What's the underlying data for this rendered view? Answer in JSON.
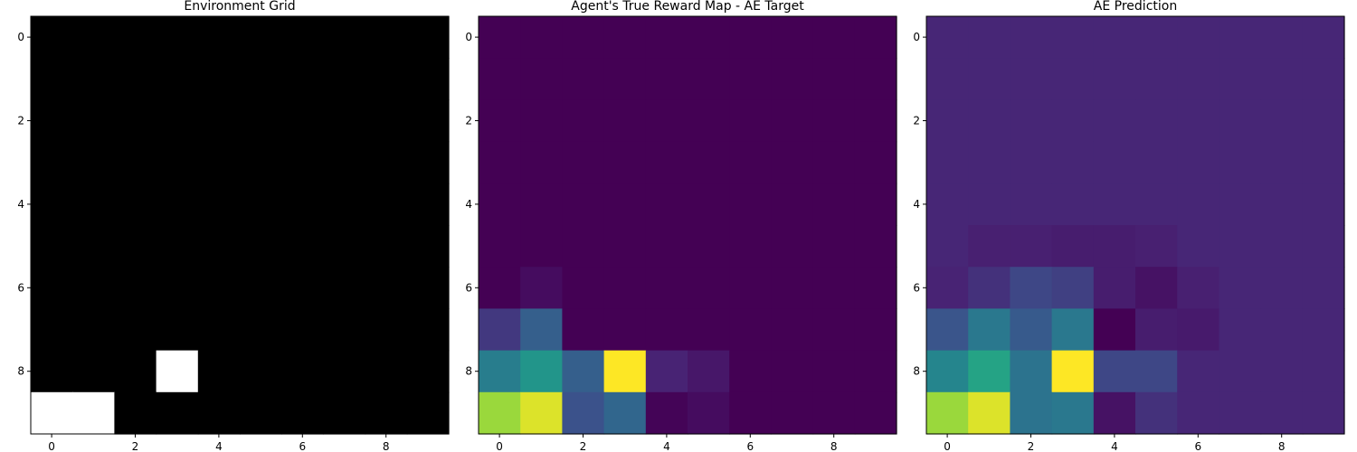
{
  "chart_data": [
    {
      "type": "heatmap",
      "title": "Environment Grid",
      "colormap": "gray",
      "xticks": [
        0,
        2,
        4,
        6,
        8
      ],
      "yticks": [
        0,
        2,
        4,
        6,
        8
      ],
      "xlim": [
        -0.5,
        9.5
      ],
      "ylim": [
        9.5,
        -0.5
      ],
      "grid": false,
      "values": [
        [
          0,
          0,
          0,
          0,
          0,
          0,
          0,
          0,
          0,
          0
        ],
        [
          0,
          0,
          0,
          0,
          0,
          0,
          0,
          0,
          0,
          0
        ],
        [
          0,
          0,
          0,
          0,
          0,
          0,
          0,
          0,
          0,
          0
        ],
        [
          0,
          0,
          0,
          0,
          0,
          0,
          0,
          0,
          0,
          0
        ],
        [
          0,
          0,
          0,
          0,
          0,
          0,
          0,
          0,
          0,
          0
        ],
        [
          0,
          0,
          0,
          0,
          0,
          0,
          0,
          0,
          0,
          0
        ],
        [
          0,
          0,
          0,
          0,
          0,
          0,
          0,
          0,
          0,
          0
        ],
        [
          0,
          0,
          0,
          0,
          0,
          0,
          0,
          0,
          0,
          0
        ],
        [
          0,
          0,
          0,
          1,
          0,
          0,
          0,
          0,
          0,
          0
        ],
        [
          1,
          1,
          0,
          0,
          0,
          0,
          0,
          0,
          0,
          0
        ]
      ]
    },
    {
      "type": "heatmap",
      "title": "Agent's True Reward Map - AE Target",
      "colormap": "viridis",
      "xticks": [
        0,
        2,
        4,
        6,
        8
      ],
      "yticks": [
        0,
        2,
        4,
        6,
        8
      ],
      "xlim": [
        -0.5,
        9.5
      ],
      "ylim": [
        9.5,
        -0.5
      ],
      "grid": false,
      "values": [
        [
          0,
          0,
          0,
          0,
          0,
          0,
          0,
          0,
          0,
          0
        ],
        [
          0,
          0,
          0,
          0,
          0,
          0,
          0,
          0,
          0,
          0
        ],
        [
          0,
          0,
          0,
          0,
          0,
          0,
          0,
          0,
          0,
          0
        ],
        [
          0,
          0,
          0,
          0,
          0,
          0,
          0,
          0,
          0,
          0
        ],
        [
          0,
          0,
          0,
          0,
          0,
          0,
          0,
          0,
          0,
          0
        ],
        [
          0,
          0,
          0,
          0,
          0,
          0,
          0,
          0,
          0,
          0
        ],
        [
          0,
          0.04,
          0,
          0,
          0,
          0,
          0,
          0,
          0,
          0
        ],
        [
          0.18,
          0.3,
          0,
          0,
          0,
          0,
          0,
          0,
          0,
          0
        ],
        [
          0.42,
          0.52,
          0.3,
          1.0,
          0.12,
          0.08,
          0,
          0,
          0,
          0
        ],
        [
          0.85,
          0.95,
          0.25,
          0.33,
          0.01,
          0.04,
          0,
          0,
          0,
          0
        ]
      ]
    },
    {
      "type": "heatmap",
      "title": "AE Prediction",
      "colormap": "viridis",
      "xticks": [
        0,
        2,
        4,
        6,
        8
      ],
      "yticks": [
        0,
        2,
        4,
        6,
        8
      ],
      "xlim": [
        -0.5,
        9.5
      ],
      "ylim": [
        9.5,
        -0.5
      ],
      "grid": false,
      "values": [
        [
          0.13,
          0.13,
          0.13,
          0.13,
          0.13,
          0.13,
          0.13,
          0.13,
          0.13,
          0.13
        ],
        [
          0.13,
          0.13,
          0.13,
          0.13,
          0.13,
          0.13,
          0.13,
          0.13,
          0.13,
          0.13
        ],
        [
          0.13,
          0.13,
          0.13,
          0.13,
          0.13,
          0.13,
          0.13,
          0.13,
          0.13,
          0.13
        ],
        [
          0.13,
          0.13,
          0.13,
          0.13,
          0.13,
          0.13,
          0.13,
          0.13,
          0.13,
          0.13
        ],
        [
          0.13,
          0.13,
          0.13,
          0.13,
          0.13,
          0.13,
          0.13,
          0.13,
          0.13,
          0.13
        ],
        [
          0.13,
          0.11,
          0.11,
          0.1,
          0.1,
          0.11,
          0.13,
          0.13,
          0.13,
          0.13
        ],
        [
          0.12,
          0.16,
          0.22,
          0.2,
          0.1,
          0.06,
          0.11,
          0.13,
          0.13,
          0.13
        ],
        [
          0.26,
          0.4,
          0.28,
          0.4,
          0.0,
          0.1,
          0.09,
          0.13,
          0.13,
          0.13
        ],
        [
          0.45,
          0.58,
          0.38,
          1.0,
          0.22,
          0.22,
          0.13,
          0.13,
          0.13,
          0.13
        ],
        [
          0.85,
          0.95,
          0.38,
          0.4,
          0.06,
          0.16,
          0.13,
          0.13,
          0.13,
          0.13
        ]
      ]
    }
  ]
}
